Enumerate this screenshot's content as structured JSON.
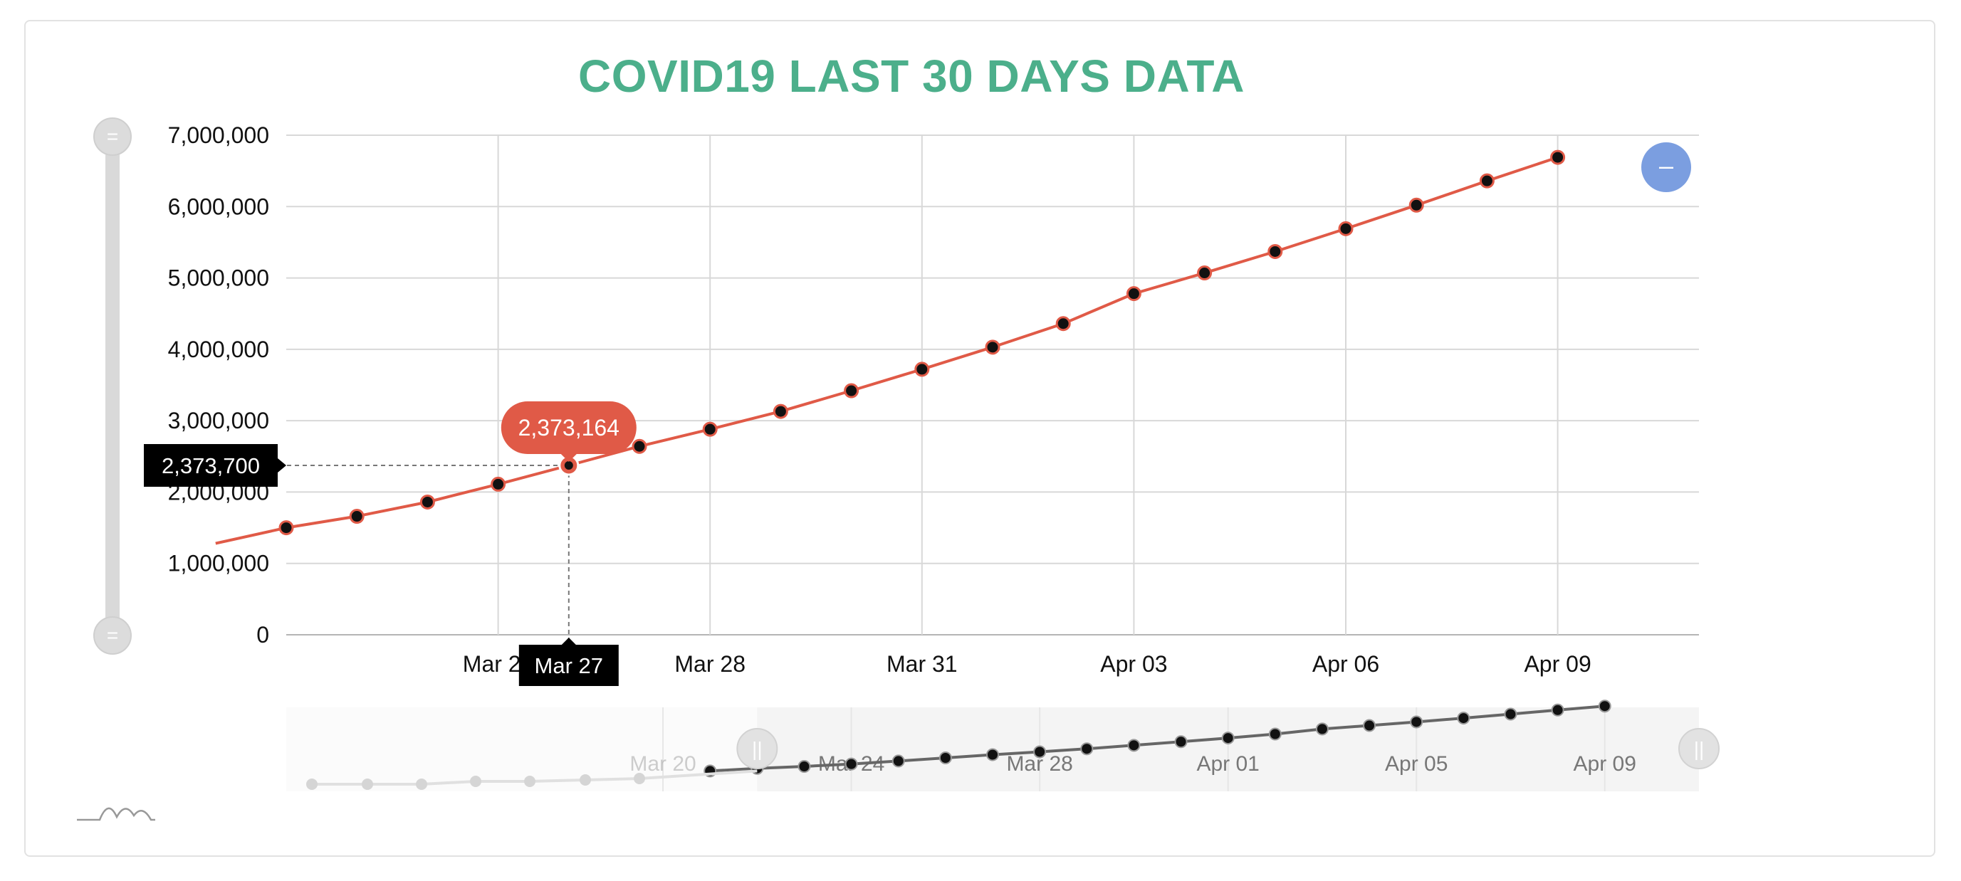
{
  "colors": {
    "title": "#4caf8b",
    "line": "#e05a47",
    "marker": "#111111",
    "grid": "#d8d8d8",
    "navigator_line": "#666666",
    "reset_button": "#7b9ee0",
    "scrollbar": "#d9d9d9"
  },
  "chart_data": {
    "type": "line",
    "title": "COVID19 LAST 30 DAYS DATA",
    "xlabel": "",
    "ylabel": "",
    "ylim": [
      0,
      7000000
    ],
    "y_ticks": [
      "0",
      "1,000,000",
      "2,000,000",
      "3,000,000",
      "4,000,000",
      "5,000,000",
      "6,000,000",
      "7,000,000"
    ],
    "x_range": [
      "2020-03-22",
      "2020-04-11"
    ],
    "x_ticks": [
      {
        "date": "2020-03-25",
        "label": "Mar 25"
      },
      {
        "date": "2020-03-28",
        "label": "Mar 28"
      },
      {
        "date": "2020-03-31",
        "label": "Mar 31"
      },
      {
        "date": "2020-04-03",
        "label": "Apr 03"
      },
      {
        "date": "2020-04-06",
        "label": "Apr 06"
      },
      {
        "date": "2020-04-09",
        "label": "Apr 09"
      }
    ],
    "grid": true,
    "series": [
      {
        "points": [
          [
            "2020-03-21",
            1280000
          ],
          [
            "2020-03-22",
            1500000
          ],
          [
            "2020-03-23",
            1660000
          ],
          [
            "2020-03-24",
            1860000
          ],
          [
            "2020-03-25",
            2110000
          ],
          [
            "2020-03-26",
            2373164
          ],
          [
            "2020-03-27",
            2640000
          ],
          [
            "2020-03-28",
            2880000
          ],
          [
            "2020-03-29",
            3130000
          ],
          [
            "2020-03-30",
            3420000
          ],
          [
            "2020-03-31",
            3720000
          ],
          [
            "2020-04-01",
            4030000
          ],
          [
            "2020-04-02",
            4360000
          ],
          [
            "2020-04-03",
            4780000
          ],
          [
            "2020-04-04",
            5070000
          ],
          [
            "2020-04-05",
            5370000
          ],
          [
            "2020-04-06",
            5690000
          ],
          [
            "2020-04-07",
            6020000
          ],
          [
            "2020-04-08",
            6360000
          ],
          [
            "2020-04-09",
            6690000
          ]
        ]
      }
    ],
    "tooltip": {
      "date": "2020-03-26",
      "value_label": "2,373,164",
      "date_label": "Mar 27",
      "y_label": "2,373,700"
    },
    "navigator": {
      "x_range": [
        "2020-03-12",
        "2020-04-11"
      ],
      "selected_from": "2020-03-22",
      "x_ticks": [
        {
          "date": "2020-03-20",
          "label": "Mar 20"
        },
        {
          "date": "2020-03-24",
          "label": "Mar 24"
        },
        {
          "date": "2020-03-28",
          "label": "Mar 28"
        },
        {
          "date": "2020-04-01",
          "label": "Apr 01"
        },
        {
          "date": "2020-04-05",
          "label": "Apr 05"
        },
        {
          "date": "2020-04-09",
          "label": "Apr 09"
        }
      ]
    }
  },
  "controls": {
    "reset_label": "–",
    "scroll_grip_label": "=",
    "nav_grip_label": "||"
  }
}
